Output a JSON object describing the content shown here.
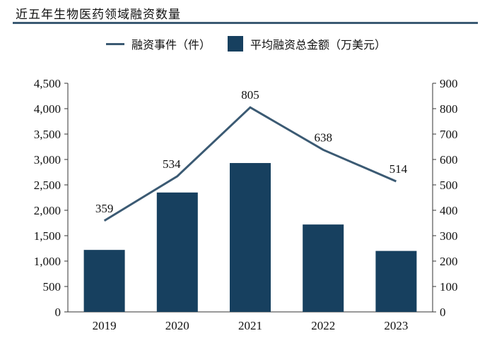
{
  "chart_data": {
    "type": "bar",
    "title": "近五年生物医药领域融资数量",
    "categories": [
      "2019",
      "2020",
      "2021",
      "2022",
      "2023"
    ],
    "series": [
      {
        "name": "平均融资总金额（万美元）",
        "type": "bar",
        "axis": "left",
        "values": [
          1220,
          2350,
          2930,
          1720,
          1200
        ],
        "color": "#17405f"
      },
      {
        "name": "融资事件（件）",
        "type": "line",
        "axis": "right",
        "values": [
          359,
          534,
          805,
          638,
          514
        ],
        "color": "#3b5a73",
        "data_labels": [
          "359",
          "534",
          "805",
          "638",
          "514"
        ]
      }
    ],
    "y_left": {
      "lim": [
        0,
        4500
      ],
      "ticks": [
        "0",
        "500",
        "1,000",
        "1,500",
        "2,000",
        "2,500",
        "3,000",
        "3,500",
        "4,000",
        "4,500"
      ]
    },
    "y_right": {
      "lim": [
        0,
        900
      ],
      "ticks": [
        "0",
        "100",
        "200",
        "300",
        "400",
        "500",
        "600",
        "700",
        "800",
        "900"
      ]
    },
    "grid": false,
    "legend": "top"
  }
}
